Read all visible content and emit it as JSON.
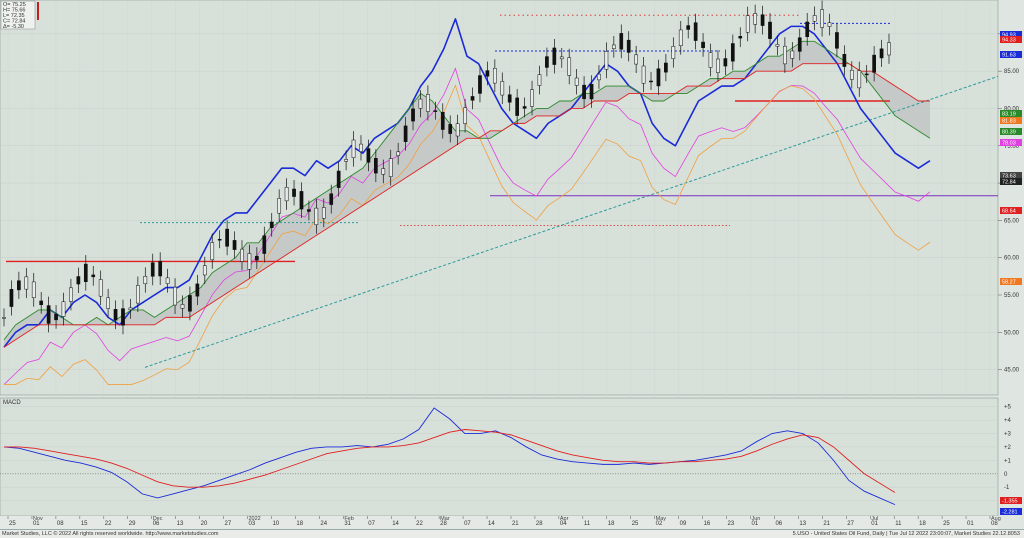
{
  "ohlc_box": {
    "lines": [
      "O= 75.25",
      "H= 75.66",
      "L= 72.35",
      "C= 72.84",
      "Δ= -5.30"
    ]
  },
  "footer": {
    "left": "Market Studies, LLC © 2022 All rights reserved worldwide. http://www.marketstudies.com",
    "right": "5.USO - United States Oil Fund, Daily | Tue Jul 12 2022 23:00:07, Market Studies 22.12.8053"
  },
  "macd_label": "MACD",
  "colors": {
    "background": "#dfe6e1",
    "price_blue": "#1a2bd8",
    "signal_red": "#e02020",
    "cloud_green": "#2a8a2a",
    "tenkan_magenta": "#e040e0",
    "kijun_orange": "#f0a040",
    "trendline_teal": "#2a9a9a",
    "support_purple": "#7a30c0"
  },
  "chart_data": [
    {
      "type": "line",
      "title": "",
      "ylim": [
        42,
        94
      ],
      "y_ticks": [
        45.0,
        50.0,
        55.0,
        60.0,
        65.0,
        70.0,
        75.0,
        80.0,
        85.0,
        90.0
      ],
      "x_ticks": [
        "25",
        "01",
        "08",
        "15",
        "22",
        "29",
        "06",
        "13",
        "20",
        "27",
        "03",
        "10",
        "18",
        "24",
        "31",
        "07",
        "14",
        "22",
        "28",
        "07",
        "14",
        "21",
        "28",
        "04",
        "11",
        "18",
        "25",
        "02",
        "09",
        "16",
        "23",
        "01",
        "06",
        "13",
        "21",
        "27",
        "01",
        "11",
        "18",
        "25",
        "01",
        "08"
      ],
      "x_month_labels": [
        "Nov",
        "Dec",
        "2022",
        "Feb",
        "Mar",
        "Apr",
        "May",
        "Jun",
        "Jul",
        "Aug"
      ],
      "right_axis_tags": [
        {
          "value": "94.93",
          "color": "#1a2bd8"
        },
        {
          "value": "94.33",
          "color": "#e02020"
        },
        {
          "value": "91.63",
          "color": "#1a2bd8"
        },
        {
          "value": "83.19",
          "color": "#2a8a2a"
        },
        {
          "value": "81.83",
          "color": "#f07820"
        },
        {
          "value": "80.39",
          "color": "#2a8a2a"
        },
        {
          "value": "78.03",
          "color": "#e040e0"
        },
        {
          "value": "73.63",
          "color": "#444444"
        },
        {
          "value": "72.84",
          "color": "#222222"
        },
        {
          "value": "68.64",
          "color": "#e02020"
        },
        {
          "value": "58.27",
          "color": "#f07820"
        }
      ],
      "series": [
        {
          "values": [
            48,
            50,
            51,
            51,
            53,
            52,
            54,
            55,
            54,
            52,
            51,
            53,
            54,
            55,
            56,
            56,
            57,
            60,
            63,
            65,
            66,
            66,
            68,
            70,
            72,
            72,
            71,
            73,
            72,
            73,
            75,
            74,
            76,
            77,
            78,
            80,
            83,
            85,
            88,
            92,
            87,
            86,
            83,
            80,
            78,
            77,
            76,
            78,
            79,
            80,
            82,
            84,
            86,
            85,
            83,
            82,
            78,
            76,
            75,
            78,
            81,
            82,
            83,
            83,
            84,
            86,
            88,
            90,
            91,
            91,
            90,
            88,
            86,
            83,
            80,
            78,
            76,
            74,
            73,
            72,
            73
          ]
        },
        {
          "values": [
            49,
            51,
            52,
            53,
            53,
            52,
            51,
            51,
            52,
            51,
            52,
            53,
            53,
            52,
            53,
            54,
            55,
            56,
            58,
            59,
            60,
            62,
            62,
            64,
            65,
            66,
            67,
            68,
            69,
            70,
            71,
            72,
            74,
            76,
            78,
            80,
            82,
            81,
            79,
            77,
            77,
            76,
            76,
            77,
            78,
            79,
            80,
            80,
            81,
            81,
            82,
            82,
            83,
            83,
            83,
            82,
            81,
            81,
            82,
            82,
            83,
            84,
            84,
            85,
            85,
            86,
            87,
            87,
            88,
            89,
            89,
            88,
            87,
            86,
            85,
            83,
            81,
            79,
            78,
            77,
            76
          ]
        },
        {
          "values": [
            48,
            49,
            50,
            51,
            51,
            51,
            51,
            51,
            51,
            51,
            51,
            51,
            51,
            51,
            52,
            52,
            52,
            53,
            54,
            55,
            56,
            57,
            58,
            59,
            60,
            61,
            62,
            63,
            64,
            65,
            66,
            67,
            68,
            69,
            70,
            71,
            72,
            73,
            74,
            75,
            76,
            76,
            77,
            77,
            78,
            78,
            79,
            79,
            79,
            80,
            80,
            81,
            81,
            81,
            82,
            82,
            82,
            82,
            82,
            83,
            83,
            83,
            84,
            84,
            84,
            85,
            85,
            85,
            85,
            86,
            86,
            86,
            86,
            86,
            85,
            85,
            84,
            83,
            82,
            81,
            81
          ]
        }
      ]
    },
    {
      "type": "line",
      "title": "MACD",
      "ylim": [
        -3,
        5.5
      ],
      "y_ticks": [
        -2,
        -1,
        0,
        1,
        2,
        3,
        4,
        5
      ],
      "right_axis_tags": [
        {
          "value": "-1.355",
          "color": "#e02020"
        },
        {
          "value": "-2.281",
          "color": "#1a2bd8"
        }
      ],
      "series": [
        {
          "values": [
            2.0,
            1.9,
            1.6,
            1.3,
            1.0,
            0.8,
            0.5,
            0.1,
            -0.6,
            -1.5,
            -1.8,
            -1.5,
            -1.2,
            -0.9,
            -0.5,
            -0.1,
            0.3,
            0.8,
            1.2,
            1.6,
            1.9,
            2.0,
            2.0,
            2.1,
            2.0,
            2.2,
            2.6,
            3.3,
            4.9,
            4.1,
            3.0,
            3.0,
            3.2,
            2.7,
            2.0,
            1.4,
            1.1,
            0.9,
            0.8,
            0.7,
            0.7,
            0.8,
            0.7,
            0.8,
            0.9,
            1.0,
            1.2,
            1.4,
            1.7,
            2.4,
            3.0,
            3.2,
            3.0,
            2.3,
            1.0,
            -0.5,
            -1.3,
            -1.8,
            -2.3
          ]
        },
        {
          "values": [
            2.0,
            2.0,
            1.9,
            1.7,
            1.5,
            1.3,
            1.1,
            0.8,
            0.4,
            -0.1,
            -0.6,
            -0.9,
            -1.0,
            -1.0,
            -0.9,
            -0.7,
            -0.4,
            -0.1,
            0.3,
            0.7,
            1.1,
            1.5,
            1.7,
            1.9,
            2.0,
            2.0,
            2.1,
            2.3,
            2.7,
            3.1,
            3.3,
            3.2,
            3.1,
            2.9,
            2.5,
            2.1,
            1.7,
            1.4,
            1.2,
            1.0,
            0.9,
            0.9,
            0.8,
            0.8,
            0.9,
            0.9,
            1.0,
            1.1,
            1.3,
            1.7,
            2.2,
            2.6,
            2.9,
            2.7,
            2.0,
            1.0,
            0.0,
            -0.7,
            -1.4
          ]
        }
      ]
    }
  ]
}
